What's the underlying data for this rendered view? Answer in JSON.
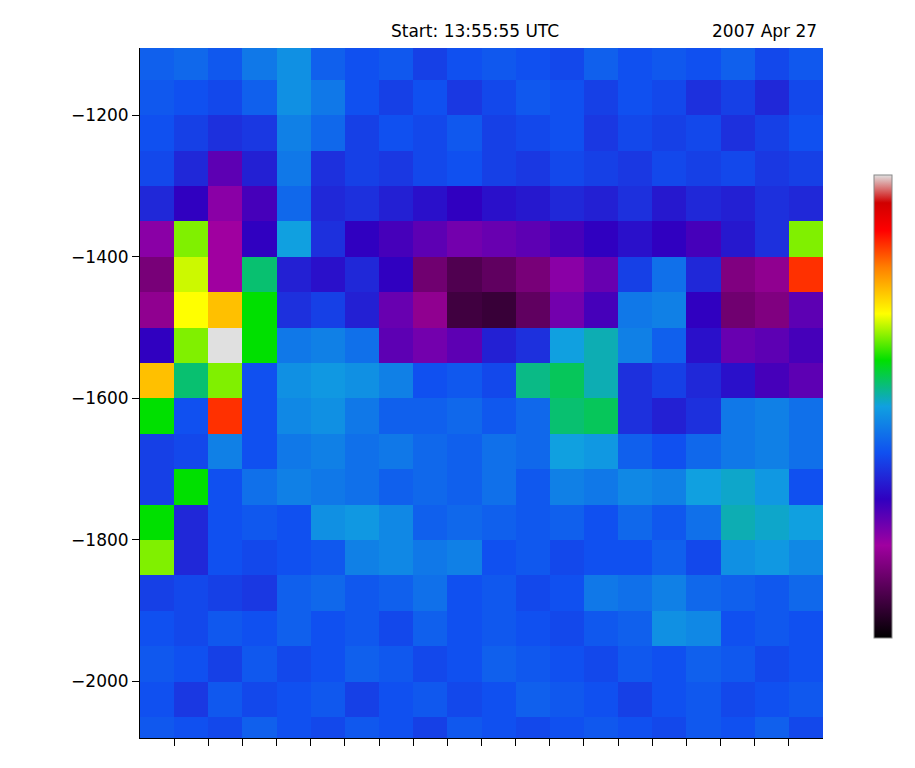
{
  "chart_data": {
    "type": "heatmap",
    "title": "Start: 13:55:55 UTC",
    "subtitle": "2007 Apr 27",
    "x": [
      -475,
      -425,
      -375,
      -325,
      -275,
      -225,
      -175,
      -125,
      -75,
      -25,
      25,
      75,
      125,
      175,
      225,
      275,
      325,
      375,
      425,
      475
    ],
    "y": [
      -1125,
      -1175,
      -1225,
      -1275,
      -1325,
      -1375,
      -1425,
      -1475,
      -1525,
      -1575,
      -1625,
      -1675,
      -1725,
      -1775,
      -1825,
      -1875,
      -1925,
      -1975,
      -2025,
      -2075
    ],
    "z": [
      [
        4.2,
        4.3,
        4.1,
        4.5,
        4.8,
        4.2,
        4.0,
        4.1,
        3.8,
        4.0,
        4.1,
        4.0,
        3.9,
        4.2,
        4.0,
        4.1,
        4.0,
        4.2,
        3.9,
        4.1
      ],
      [
        4.1,
        4.0,
        3.9,
        4.2,
        4.8,
        4.5,
        4.0,
        3.8,
        4.0,
        3.7,
        3.9,
        4.1,
        4.0,
        3.8,
        4.0,
        3.9,
        3.6,
        3.8,
        3.5,
        3.9
      ],
      [
        4.0,
        3.8,
        3.6,
        3.7,
        4.6,
        4.3,
        3.8,
        4.0,
        3.9,
        4.1,
        3.8,
        3.9,
        4.0,
        3.7,
        3.9,
        3.8,
        3.9,
        3.6,
        3.8,
        4.0
      ],
      [
        3.9,
        3.5,
        2.6,
        3.4,
        4.5,
        3.6,
        3.8,
        3.7,
        3.9,
        4.0,
        3.8,
        3.7,
        3.9,
        3.8,
        3.7,
        3.9,
        3.8,
        3.9,
        3.7,
        3.8
      ],
      [
        3.5,
        3.0,
        2.2,
        2.8,
        4.3,
        3.5,
        3.6,
        3.4,
        3.2,
        3.0,
        3.2,
        3.3,
        3.5,
        3.4,
        3.6,
        3.3,
        3.5,
        3.4,
        3.6,
        3.5
      ],
      [
        2.2,
        6.5,
        2.0,
        3.0,
        5.0,
        3.6,
        3.0,
        2.8,
        2.6,
        2.4,
        2.5,
        2.6,
        2.8,
        3.0,
        3.2,
        3.0,
        2.8,
        3.3,
        3.6,
        6.5
      ],
      [
        1.5,
        6.8,
        2.0,
        5.5,
        3.4,
        3.2,
        3.5,
        3.0,
        1.4,
        1.0,
        1.2,
        1.5,
        2.2,
        2.5,
        3.8,
        4.4,
        3.5,
        1.6,
        1.8,
        8.5
      ],
      [
        1.8,
        7.0,
        7.5,
        6.0,
        3.6,
        3.8,
        3.4,
        2.5,
        1.8,
        0.8,
        0.7,
        1.2,
        2.4,
        2.8,
        4.5,
        4.6,
        3.0,
        1.4,
        1.6,
        2.6
      ],
      [
        3.0,
        6.5,
        10.0,
        6.0,
        4.5,
        4.6,
        4.4,
        2.6,
        2.4,
        2.6,
        3.4,
        3.6,
        5.0,
        5.2,
        4.6,
        4.2,
        3.2,
        2.5,
        2.6,
        2.8
      ],
      [
        7.5,
        5.5,
        6.5,
        4.0,
        4.8,
        4.9,
        4.8,
        4.6,
        4.0,
        4.1,
        3.9,
        5.4,
        5.6,
        5.2,
        3.6,
        3.8,
        3.5,
        3.2,
        2.8,
        2.6
      ],
      [
        6.0,
        4.0,
        8.5,
        4.0,
        4.7,
        4.8,
        4.5,
        4.2,
        4.2,
        4.3,
        4.1,
        4.3,
        5.5,
        5.6,
        3.6,
        3.4,
        3.6,
        4.5,
        4.6,
        4.4
      ],
      [
        3.8,
        3.9,
        4.6,
        4.0,
        4.5,
        4.6,
        4.4,
        4.5,
        4.3,
        4.2,
        4.4,
        4.3,
        5.0,
        4.9,
        4.2,
        4.0,
        4.3,
        4.5,
        4.6,
        4.4
      ],
      [
        3.8,
        6.0,
        4.0,
        4.4,
        4.6,
        4.5,
        4.4,
        4.2,
        4.3,
        4.2,
        4.4,
        4.1,
        4.6,
        4.5,
        4.7,
        4.6,
        5.0,
        5.1,
        4.9,
        4.0
      ],
      [
        6.0,
        3.5,
        4.0,
        4.1,
        4.0,
        4.8,
        4.9,
        4.7,
        4.2,
        4.3,
        4.2,
        4.1,
        4.2,
        4.0,
        4.3,
        4.1,
        4.4,
        5.2,
        5.1,
        5.0
      ],
      [
        6.5,
        3.5,
        4.0,
        3.9,
        4.0,
        4.1,
        4.6,
        4.7,
        4.5,
        4.6,
        4.0,
        4.1,
        3.9,
        4.0,
        4.0,
        4.2,
        3.9,
        4.8,
        4.9,
        4.7
      ],
      [
        3.8,
        3.9,
        3.8,
        3.7,
        4.2,
        4.3,
        4.1,
        4.2,
        4.4,
        4.0,
        4.1,
        3.9,
        4.0,
        4.5,
        4.4,
        4.6,
        4.3,
        4.2,
        4.1,
        4.3
      ],
      [
        4.0,
        3.9,
        4.1,
        4.0,
        4.2,
        4.0,
        4.1,
        3.9,
        4.2,
        4.0,
        4.1,
        4.0,
        3.9,
        4.1,
        4.2,
        4.8,
        4.7,
        4.0,
        4.1,
        4.0
      ],
      [
        4.1,
        4.0,
        3.8,
        4.1,
        3.9,
        4.0,
        4.2,
        4.1,
        3.9,
        4.0,
        4.2,
        4.1,
        4.0,
        3.9,
        4.1,
        4.0,
        4.2,
        4.1,
        3.9,
        4.0
      ],
      [
        4.0,
        3.7,
        4.1,
        3.9,
        4.0,
        4.1,
        3.8,
        4.0,
        4.1,
        3.9,
        4.0,
        4.2,
        4.1,
        4.0,
        3.8,
        4.0,
        4.1,
        3.9,
        4.0,
        4.1
      ],
      [
        4.1,
        4.0,
        3.9,
        4.2,
        4.0,
        3.9,
        4.1,
        4.0,
        3.8,
        4.1,
        4.0,
        3.9,
        4.0,
        4.1,
        4.0,
        3.9,
        4.1,
        4.0,
        4.2,
        3.9
      ]
    ],
    "zlim": [
      0,
      10
    ],
    "xlim": [
      -500,
      500
    ],
    "ylim": [
      -2080,
      -1105
    ],
    "xticks": [
      -450,
      -400,
      -350,
      -300,
      -250,
      -200,
      -150,
      -100,
      -50,
      0,
      50,
      100,
      150,
      200,
      250,
      300,
      350,
      400,
      450
    ],
    "yticks": [
      -2000,
      -1800,
      -1600,
      -1400,
      -1200
    ],
    "tick_labels": "y"
  }
}
